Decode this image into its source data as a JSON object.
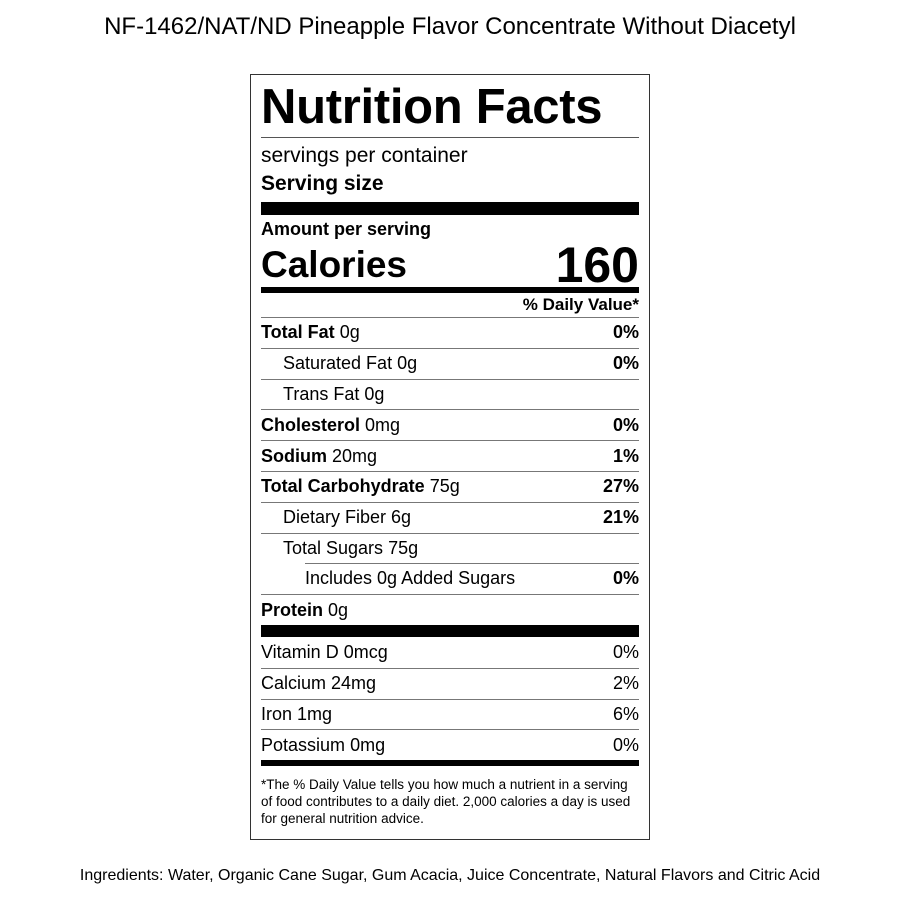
{
  "title": "NF-1462/NAT/ND Pineapple Flavor Concentrate Without Diacetyl",
  "label": {
    "heading": "Nutrition Facts",
    "servings": "servings per container",
    "serving_size": "Serving size",
    "amount_per_serving": "Amount per serving",
    "calories_label": "Calories",
    "calories": "160",
    "dv_header": "% Daily Value*",
    "nutrients": [
      {
        "name": "Total Fat",
        "amount": "0g",
        "dv": "0%",
        "level": 0
      },
      {
        "name": "Saturated Fat",
        "amount": "0g",
        "dv": "0%",
        "level": 1
      },
      {
        "name": "Trans Fat",
        "amount": "0g",
        "level": 1
      },
      {
        "name": "Cholesterol",
        "amount": "0mg",
        "dv": "0%",
        "level": 0
      },
      {
        "name": "Sodium",
        "amount": "20mg",
        "dv": "1%",
        "level": 0
      },
      {
        "name": "Total Carbohydrate",
        "amount": "75g",
        "dv": "27%",
        "level": 0
      },
      {
        "name": "Dietary Fiber",
        "amount": "6g",
        "dv": "21%",
        "level": 1
      },
      {
        "name": "Total Sugars",
        "amount": "75g",
        "level": 1
      },
      {
        "name": "Includes 0g Added Sugars",
        "dv": "0%",
        "level": 2
      },
      {
        "name": "Protein",
        "amount": "0g",
        "level": 0
      }
    ],
    "vitamins": [
      {
        "name": "Vitamin D",
        "amount": "0mcg",
        "dv": "0%"
      },
      {
        "name": "Calcium",
        "amount": "24mg",
        "dv": "2%"
      },
      {
        "name": "Iron",
        "amount": "1mg",
        "dv": "6%"
      },
      {
        "name": "Potassium",
        "amount": "0mg",
        "dv": "0%"
      }
    ],
    "footnote": "*The % Daily Value tells you how much a nutrient in a serving of food contributes to a daily diet. 2,000 calories a day is used for general nutrition advice."
  },
  "ingredients": "Ingredients: Water, Organic Cane Sugar, Gum Acacia, Juice Concentrate, Natural Flavors and Citric Acid"
}
